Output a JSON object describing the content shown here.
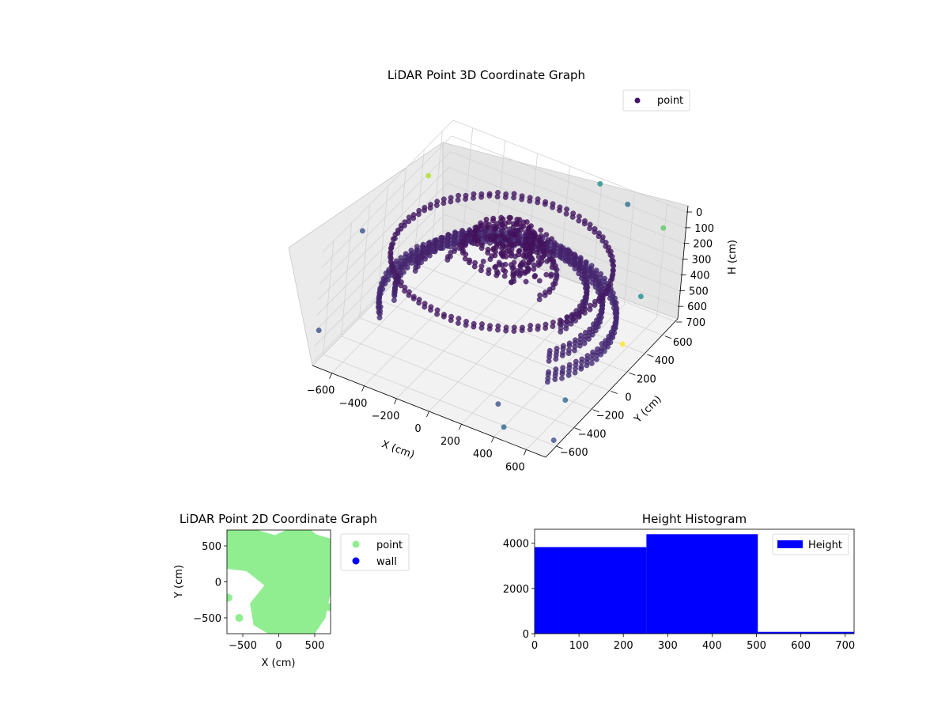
{
  "chart_data": [
    {
      "type": "scatter3d",
      "title": "LiDAR Point 3D Coordinate Graph",
      "xlabel": "X (cm)",
      "ylabel": "Y (cm)",
      "zlabel": "H (cm)",
      "xlim": [
        -720,
        720
      ],
      "ylim": [
        -720,
        720
      ],
      "zlim": [
        0,
        720
      ],
      "z_inverted": true,
      "xticks": [
        "−600",
        "−400",
        "−200",
        "0",
        "200",
        "400",
        "600"
      ],
      "xtick_values": [
        -600,
        -400,
        -200,
        0,
        200,
        400,
        600
      ],
      "yticks": [
        "−600",
        "−400",
        "−200",
        "0",
        "200",
        "400",
        "600"
      ],
      "ytick_values": [
        -600,
        -400,
        -200,
        0,
        200,
        400,
        600
      ],
      "zticks": [
        "0",
        "100",
        "200",
        "300",
        "400",
        "500",
        "600",
        "700"
      ],
      "ztick_values": [
        0,
        100,
        200,
        300,
        400,
        500,
        600,
        700
      ],
      "grid": true,
      "colormap": "viridis",
      "legend": {
        "position": "top-right",
        "entries": [
          {
            "label": "point",
            "color": "#44146b"
          }
        ]
      },
      "series": [
        {
          "name": "point",
          "rings": [
            {
              "r": 640,
              "z": 500,
              "ymin": -400,
              "ymax": 720
            },
            {
              "r": 560,
              "z": 430,
              "ymin": -300,
              "ymax": 720
            },
            {
              "r": 470,
              "z": 350,
              "ymin": -150,
              "ymax": 720
            },
            {
              "r": 300,
              "z": 260,
              "ymin": -100,
              "ymax": 720
            },
            {
              "r": 600,
              "z": 200,
              "ymin": -720,
              "ymax": 720
            },
            {
              "r": 220,
              "z": 120,
              "ymin": -720,
              "ymax": 720
            },
            {
              "r": 160,
              "z": 40,
              "ymin": -720,
              "ymax": 720
            }
          ],
          "outliers": [
            {
              "x": -700,
              "y": -300,
              "z": 100,
              "c": "#3b528b"
            },
            {
              "x": -680,
              "y": 400,
              "z": 150,
              "c": "#b5de2b"
            },
            {
              "x": 200,
              "y": 700,
              "z": 20,
              "c": "#21918c"
            },
            {
              "x": 400,
              "y": 650,
              "z": 40,
              "c": "#2c728e"
            },
            {
              "x": 650,
              "y": 600,
              "z": 60,
              "c": "#5ec962"
            },
            {
              "x": 700,
              "y": 300,
              "z": 300,
              "c": "#21918c"
            },
            {
              "x": 690,
              "y": 150,
              "z": 520,
              "c": "#fde725"
            },
            {
              "x": 600,
              "y": -300,
              "z": 650,
              "c": "#31688e"
            },
            {
              "x": 420,
              "y": -650,
              "z": 690,
              "c": "#31688e"
            },
            {
              "x": 700,
              "y": -600,
              "z": 690,
              "c": "#3b528b"
            },
            {
              "x": -720,
              "y": -680,
              "z": 520,
              "c": "#3b528b"
            },
            {
              "x": 300,
              "y": -500,
              "z": 680,
              "c": "#3b528b"
            }
          ]
        }
      ]
    },
    {
      "type": "scatter",
      "title": "LiDAR Point 2D Coordinate Graph",
      "xlabel": "X (cm)",
      "ylabel": "Y (cm)",
      "xlim": [
        -720,
        720
      ],
      "ylim": [
        -720,
        720
      ],
      "xticks": [
        "−500",
        "0",
        "500"
      ],
      "xtick_values": [
        -500,
        0,
        500
      ],
      "yticks": [
        "−500",
        "0",
        "500"
      ],
      "ytick_values": [
        -500,
        0,
        500
      ],
      "legend": {
        "position": "outside-right",
        "entries": [
          {
            "label": "point",
            "color": "#90ee90"
          },
          {
            "label": "wall",
            "color": "#0000ff"
          }
        ]
      },
      "series": [
        {
          "name": "point",
          "color": "#90ee90"
        },
        {
          "name": "wall",
          "color": "#0000ff",
          "points": []
        }
      ]
    },
    {
      "type": "histogram",
      "title": "Height Histogram",
      "xlim": [
        0,
        720
      ],
      "ylim": [
        0,
        4620
      ],
      "xticks": [
        "0",
        "100",
        "200",
        "300",
        "400",
        "500",
        "600",
        "700"
      ],
      "xtick_values": [
        0,
        100,
        200,
        300,
        400,
        500,
        600,
        700
      ],
      "yticks": [
        "0",
        "2000",
        "4000"
      ],
      "ytick_values": [
        0,
        2000,
        4000
      ],
      "color": "#0000ff",
      "legend": {
        "position": "top-right",
        "entries": [
          {
            "label": "Height",
            "color": "#0000ff"
          }
        ]
      },
      "series": [
        {
          "name": "Height",
          "bins": [
            {
              "x0": 0,
              "x1": 252,
              "count": 3830
            },
            {
              "x0": 252,
              "x1": 503,
              "count": 4400
            },
            {
              "x0": 503,
              "x1": 720,
              "count": 80
            }
          ]
        }
      ]
    }
  ]
}
